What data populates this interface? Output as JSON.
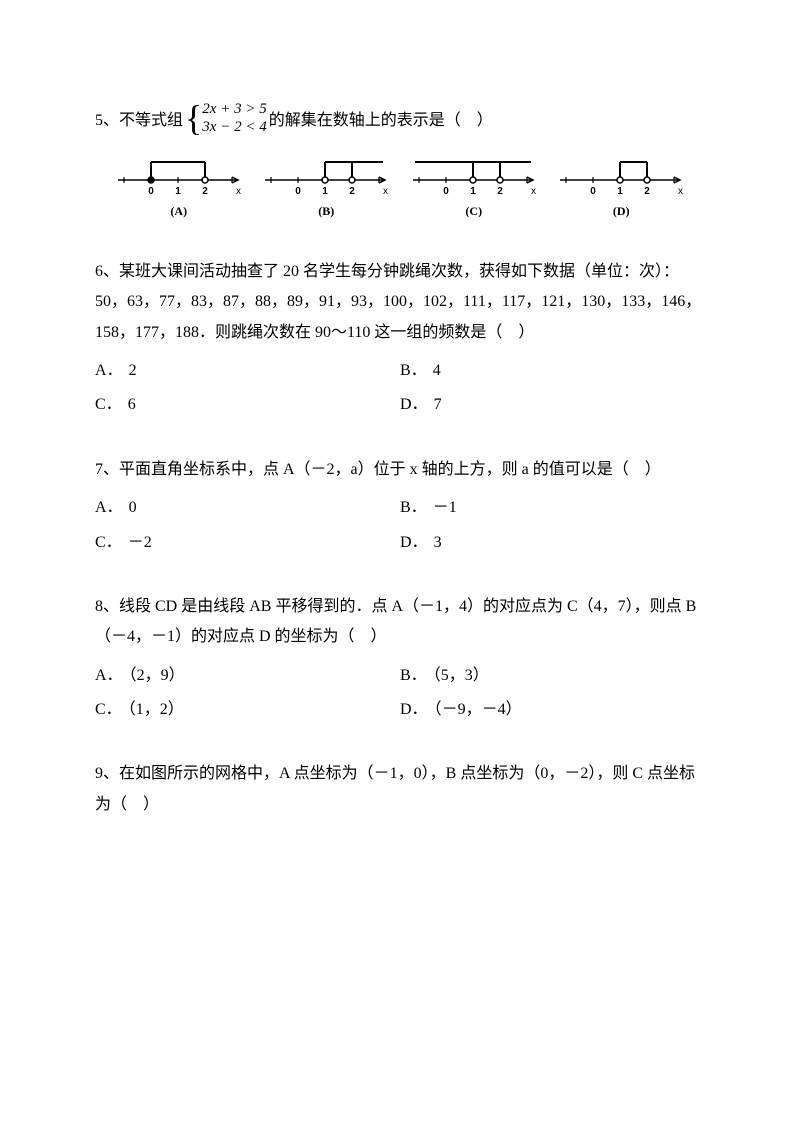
{
  "colors": {
    "text": "#000000",
    "bg": "#ffffff",
    "stroke": "#000000",
    "fill_open": "#ffffff"
  },
  "q5": {
    "lead": "5、不等式组",
    "eq1": "2x + 3 > 5",
    "eq2": "3x − 2 < 4",
    "tail": "的解集在数轴上的表示是（　）",
    "numlines": [
      {
        "label": "(A)",
        "open0": false,
        "open2": true,
        "barStart": 0,
        "barEnd": 2,
        "barOutLeft": false,
        "barOutRight": false
      },
      {
        "label": "(B)",
        "open0": true,
        "open2": true,
        "barStart": 1,
        "barEnd": 2,
        "barOutLeft": false,
        "barOutRight": true
      },
      {
        "label": "(C)",
        "open0": true,
        "open2": true,
        "barStart": 1,
        "barEnd": 2,
        "barOutLeft": true,
        "barOutRight": true
      },
      {
        "label": "(D)",
        "open0": true,
        "open2": true,
        "barStart": 1,
        "barEnd": 2,
        "barOutLeft": false,
        "barOutRight": false
      }
    ],
    "axis": {
      "ticks": [
        -1,
        0,
        1,
        2,
        3
      ],
      "labels": [
        {
          "at": 0,
          "text": "0"
        },
        {
          "at": 1,
          "text": "1"
        },
        {
          "at": 2,
          "text": "2"
        }
      ],
      "x_axis_label": "x"
    }
  },
  "q6": {
    "text": "6、某班大课间活动抽查了 20 名学生每分钟跳绳次数，获得如下数据（单位：次）：",
    "data_line": "50，63，77，83，87，88，89，91，93，100，102，111，117，121，130，133，146，158，177，188．则跳绳次数在 90～110 这一组的频数是（　）",
    "options": [
      {
        "l": "A．",
        "v": "2"
      },
      {
        "l": "B．",
        "v": "4"
      },
      {
        "l": "C．",
        "v": "6"
      },
      {
        "l": "D．",
        "v": "7"
      }
    ]
  },
  "q7": {
    "text": "7、平面直角坐标系中，点 A（－2，a）位于 x 轴的上方，则 a 的值可以是（　）",
    "options": [
      {
        "l": "A．",
        "v": "0"
      },
      {
        "l": "B．",
        "v": "－1"
      },
      {
        "l": "C．",
        "v": "－2"
      },
      {
        "l": "D．",
        "v": "3"
      }
    ]
  },
  "q8": {
    "text1": "8、线段 CD 是由线段 AB 平移得到的．点 A（－1，4）的对应点为 C（4，7），则点 B（－4，－1）的对应点 D 的坐标为（　）",
    "options": [
      {
        "l": "A．",
        "v": "（2，9）"
      },
      {
        "l": "B．",
        "v": "（5，3）"
      },
      {
        "l": "C．",
        "v": "（1，2）"
      },
      {
        "l": "D．",
        "v": "（－9，－4）"
      }
    ]
  },
  "q9": {
    "text": "9、在如图所示的网格中，A 点坐标为（－1，0），B 点坐标为（0，－2），则 C 点坐标为（　）"
  }
}
